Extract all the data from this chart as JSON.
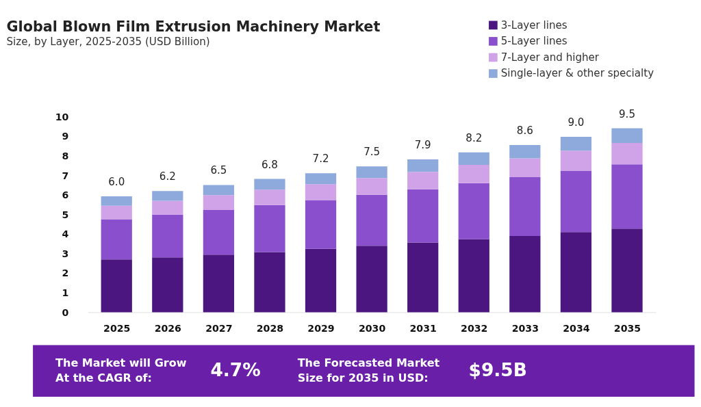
{
  "chart_data": {
    "type": "bar",
    "stacked": true,
    "title": "Global Blown Film Extrusion Machinery Market",
    "subtitle": "Size, by Layer, 2025-2035 (USD Billion)",
    "categories": [
      "2025",
      "2026",
      "2027",
      "2028",
      "2029",
      "2030",
      "2031",
      "2032",
      "2033",
      "2034",
      "2035"
    ],
    "series": [
      {
        "name": "3-Layer lines",
        "color": "#4b1680",
        "values": [
          2.7,
          2.81,
          2.95,
          3.08,
          3.24,
          3.4,
          3.57,
          3.73,
          3.9,
          4.1,
          4.28
        ]
      },
      {
        "name": "5-Layer lines",
        "color": "#8a4fcc",
        "values": [
          2.06,
          2.18,
          2.28,
          2.4,
          2.5,
          2.61,
          2.72,
          2.87,
          3.01,
          3.14,
          3.29
        ]
      },
      {
        "name": "7-Layer and higher",
        "color": "#d0a3e8",
        "values": [
          0.69,
          0.71,
          0.76,
          0.79,
          0.81,
          0.86,
          0.89,
          0.94,
          0.96,
          1.03,
          1.09
        ]
      },
      {
        "name": "Single-layer & other specialty",
        "color": "#8eaadc",
        "values": [
          0.48,
          0.5,
          0.52,
          0.55,
          0.56,
          0.59,
          0.64,
          0.64,
          0.69,
          0.71,
          0.75
        ]
      }
    ],
    "totals": [
      "6.0",
      "6.2",
      "6.5",
      "6.8",
      "7.2",
      "7.5",
      "7.9",
      "8.2",
      "8.6",
      "9.0",
      "9.5"
    ],
    "ylim": [
      0,
      10
    ],
    "yticks": [
      0,
      1,
      2,
      3,
      4,
      5,
      6,
      7,
      8,
      9,
      10
    ],
    "grid": false,
    "legend": "top right",
    "annotations": [
      "The Market will Grow\nAt the CAGR of:",
      "4.7%",
      "The Forecasted Market\nSize for 2035 in USD:",
      "$9.5B"
    ]
  }
}
